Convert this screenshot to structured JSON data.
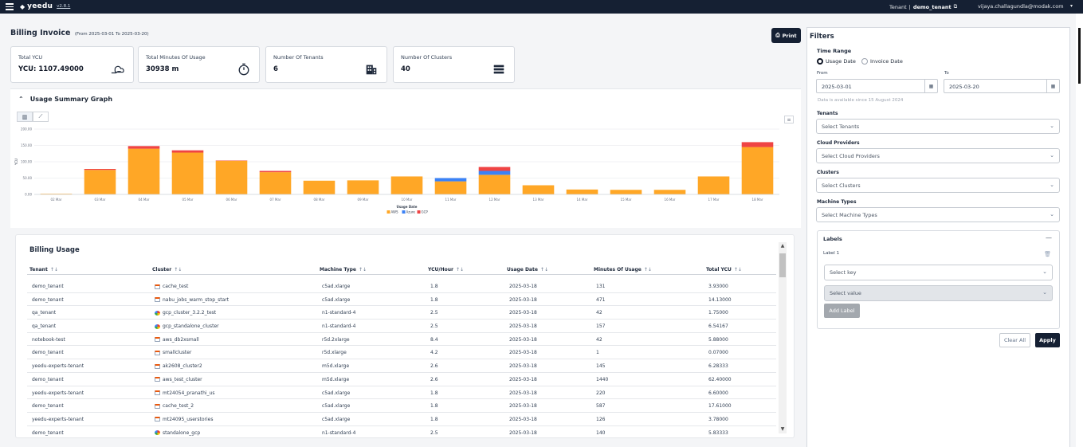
{
  "topbar": {
    "brand": "yeedu",
    "version": "v2.8.1",
    "tenant_label": "Tenant",
    "tenant_name": "demo_tenant",
    "user_email": "vijaya.challagundla@modak.com"
  },
  "page": {
    "title": "Billing Invoice",
    "date_range": "(From 2025-03-01 To 2025-03-20)",
    "print_label": "Print"
  },
  "stats": [
    {
      "label": "Total YCU",
      "value": "YCU: 1107.49000",
      "icon": "cloud-hand-icon"
    },
    {
      "label": "Total Minutes Of Usage",
      "value": "30938 m",
      "icon": "stopwatch-icon"
    },
    {
      "label": "Number Of Tenants",
      "value": "6",
      "icon": "building-icon"
    },
    {
      "label": "Number Of Clusters",
      "value": "40",
      "icon": "server-icon"
    }
  ],
  "graph": {
    "title": "Usage Summary Graph"
  },
  "chart_data": {
    "type": "bar",
    "stacked": true,
    "title": "",
    "xlabel": "Usage Date",
    "ylabel": "YCU",
    "ylim": [
      0,
      200
    ],
    "y_ticks": [
      "0.00",
      "50.00",
      "100.00",
      "150.00",
      "200.00"
    ],
    "categories": [
      "02 Mar",
      "03 Mar",
      "04 Mar",
      "05 Mar",
      "06 Mar",
      "07 Mar",
      "08 Mar",
      "09 Mar",
      "10 Mar",
      "11 Mar",
      "12 Mar",
      "13 Mar",
      "14 Mar",
      "15 Mar",
      "16 Mar",
      "17 Mar",
      "18 Mar"
    ],
    "series": [
      {
        "name": "AWS",
        "color": "#ffa726",
        "values": [
          2,
          75,
          140,
          128,
          103,
          68,
          42,
          43,
          55,
          40,
          60,
          28,
          15,
          14,
          14,
          55,
          145
        ]
      },
      {
        "name": "Azure",
        "color": "#3b82f6",
        "values": [
          0,
          0,
          0,
          0,
          0,
          0,
          0,
          0,
          0,
          10,
          12,
          0,
          0,
          0,
          0,
          0,
          0
        ]
      },
      {
        "name": "GCP",
        "color": "#ef4444",
        "values": [
          0,
          3,
          8,
          7,
          1,
          4,
          0,
          0,
          0,
          0,
          12,
          0,
          0,
          0,
          0,
          0,
          15
        ]
      }
    ]
  },
  "billing_table": {
    "title": "Billing Usage",
    "columns": [
      "Tenant",
      "Cluster",
      "Machine Type",
      "YCU/Hour",
      "Usage Date",
      "Minutes Of Usage",
      "Total YCU"
    ],
    "rows": [
      {
        "tenant": "demo_tenant",
        "cluster": "cache_test",
        "cloud": "aws",
        "machine": "c5ad.xlarge",
        "ycu_hour": "1.8",
        "date": "2025-03-18",
        "minutes": "131",
        "total": "3.93000"
      },
      {
        "tenant": "demo_tenant",
        "cluster": "nabu_jobs_warm_stop_start",
        "cloud": "aws",
        "machine": "c5ad.xlarge",
        "ycu_hour": "1.8",
        "date": "2025-03-18",
        "minutes": "471",
        "total": "14.13000"
      },
      {
        "tenant": "qa_tenant",
        "cluster": "gcp_cluster_3.2.2_test",
        "cloud": "gcp",
        "machine": "n1-standard-4",
        "ycu_hour": "2.5",
        "date": "2025-03-18",
        "minutes": "42",
        "total": "1.75000"
      },
      {
        "tenant": "qa_tenant",
        "cluster": "gcp_standalone_cluster",
        "cloud": "gcp",
        "machine": "n1-standard-4",
        "ycu_hour": "2.5",
        "date": "2025-03-18",
        "minutes": "157",
        "total": "6.54167"
      },
      {
        "tenant": "notebook-test",
        "cluster": "aws_db2xsmall",
        "cloud": "aws",
        "machine": "r5d.2xlarge",
        "ycu_hour": "8.4",
        "date": "2025-03-18",
        "minutes": "42",
        "total": "5.88000"
      },
      {
        "tenant": "demo_tenant",
        "cluster": "smallcluster",
        "cloud": "aws",
        "machine": "r5d.xlarge",
        "ycu_hour": "4.2",
        "date": "2025-03-18",
        "minutes": "1",
        "total": "0.07000"
      },
      {
        "tenant": "yeedu-experts-tenant",
        "cluster": "ak2608_cluster2",
        "cloud": "aws",
        "machine": "m5d.xlarge",
        "ycu_hour": "2.6",
        "date": "2025-03-18",
        "minutes": "145",
        "total": "6.28333"
      },
      {
        "tenant": "demo_tenant",
        "cluster": "aws_test_cluster",
        "cloud": "aws",
        "machine": "m5d.xlarge",
        "ycu_hour": "2.6",
        "date": "2025-03-18",
        "minutes": "1440",
        "total": "62.40000"
      },
      {
        "tenant": "yeedu-experts-tenant",
        "cluster": "mt24054_pranathi_us",
        "cloud": "aws",
        "machine": "c5ad.xlarge",
        "ycu_hour": "1.8",
        "date": "2025-03-18",
        "minutes": "220",
        "total": "6.60000"
      },
      {
        "tenant": "demo_tenant",
        "cluster": "cache_test_2",
        "cloud": "aws",
        "machine": "c5ad.xlarge",
        "ycu_hour": "1.8",
        "date": "2025-03-18",
        "minutes": "587",
        "total": "17.61000"
      },
      {
        "tenant": "yeedu-experts-tenant",
        "cluster": "mt24095_userstories",
        "cloud": "aws",
        "machine": "c5ad.xlarge",
        "ycu_hour": "1.8",
        "date": "2025-03-18",
        "minutes": "126",
        "total": "3.78000"
      },
      {
        "tenant": "demo_tenant",
        "cluster": "standalone_gcp",
        "cloud": "gcp",
        "machine": "n1-standard-4",
        "ycu_hour": "2.5",
        "date": "2025-03-18",
        "minutes": "140",
        "total": "5.83333"
      }
    ]
  },
  "filters": {
    "title": "Filters",
    "time_range_label": "Time Range",
    "radio_usage": "Usage Date",
    "radio_invoice": "Invoice Date",
    "selected_radio": "Usage Date",
    "from_label": "From",
    "from_value": "2025-03-01",
    "to_label": "To",
    "to_value": "2025-03-20",
    "availability_note": "Data is available since 15 August 2024",
    "tenants_label": "Tenants",
    "tenants_placeholder": "Select Tenants",
    "cloud_label": "Cloud Providers",
    "cloud_placeholder": "Select Cloud Providers",
    "clusters_label": "Clusters",
    "clusters_placeholder": "Select Clusters",
    "machine_label": "Machine Types",
    "machine_placeholder": "Select Machine Types",
    "labels_title": "Labels",
    "label_1": "Label 1",
    "key_placeholder": "Select key",
    "value_placeholder": "Select value",
    "add_label": "Add Label",
    "clear_all": "Clear All",
    "apply": "Apply"
  }
}
